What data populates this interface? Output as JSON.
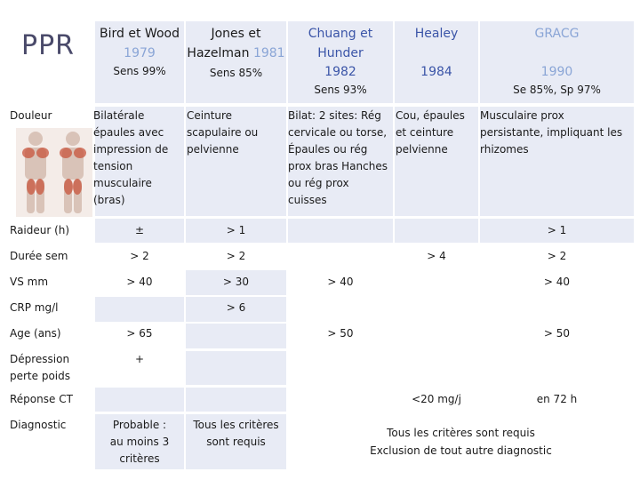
{
  "title": "PPR",
  "headers": {
    "bird": {
      "name": "Bird et Wood",
      "year": "1979",
      "sens": "Sens 99%"
    },
    "jones": {
      "name1": "Jones et",
      "name2": "Hazelman",
      "year": "1981",
      "sens": "Sens 85%"
    },
    "chuang": {
      "name1": "Chuang et",
      "name2": "Hunder",
      "year": "1982",
      "sens": "Sens 93%"
    },
    "healey": {
      "name": "Healey",
      "year": "1984"
    },
    "gracg": {
      "name": "GRACG",
      "year": "1990",
      "sens": "Se 85%, Sp 97%"
    }
  },
  "rows": {
    "douleur": {
      "label": "Douleur",
      "bird": [
        "Bilatérale",
        "épaules avec",
        "impression de",
        "tension",
        "musculaire",
        "(bras)"
      ],
      "jones": [
        "Ceinture",
        "scapulaire ou",
        "pelvienne"
      ],
      "chuang": [
        "Bilat: 2 sites: Rég",
        "cervicale ou torse,",
        "Épaules ou rég",
        "prox bras Hanches",
        "ou rég prox",
        "cuisses"
      ],
      "healey": [
        "Cou, épaules",
        "et ceinture",
        "pelvienne"
      ],
      "gracg": [
        "Musculaire prox",
        "persistante, impliquant les",
        "rhizomes"
      ]
    },
    "raideur": {
      "label": "Raideur (h)",
      "bird": "±",
      "jones": "> 1",
      "gracg": "> 1"
    },
    "duree": {
      "label": "Durée sem",
      "bird": "> 2",
      "jones": "> 2",
      "healey": "> 4",
      "gracg": "> 2"
    },
    "vs": {
      "label": "VS mm",
      "bird": "> 40",
      "jones": "> 30",
      "chuang": "> 40",
      "gracg": "> 40"
    },
    "crp": {
      "label": "CRP mg/l",
      "jones": "> 6"
    },
    "age": {
      "label": "Age (ans)",
      "bird": "> 65",
      "chuang": "> 50",
      "gracg": "> 50"
    },
    "depression": {
      "label1": "Dépression",
      "label2": "perte poids",
      "bird": "+"
    },
    "reponse": {
      "label": "Réponse CT",
      "healey": "<20 mg/j",
      "gracg": "en 72 h"
    },
    "diagnostic": {
      "label": "Diagnostic",
      "bird": [
        "Probable :",
        "au moins 3",
        "critères"
      ],
      "jones": [
        "Tous les critères",
        "sont requis"
      ],
      "right1": "Tous les critères sont requis",
      "right2": "Exclusion de tout autre diagnostic"
    }
  }
}
